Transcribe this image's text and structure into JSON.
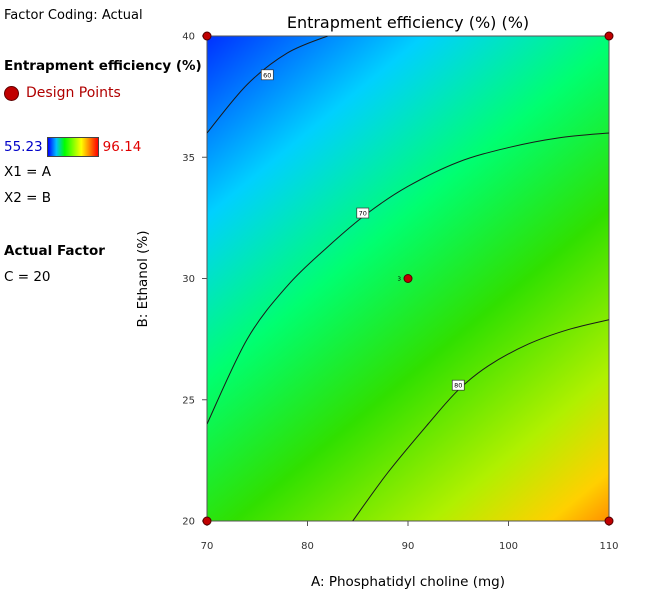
{
  "legend": {
    "factor_coding": "Factor Coding: Actual",
    "response_title": "Entrapment efficiency (%) (%)",
    "design_points_label": "Design Points",
    "scale_min": "55.23",
    "scale_max": "96.14",
    "x1": "X1 = A",
    "x2": "X2 = B",
    "actual_factor_title": "Actual Factor",
    "actual_factor_value": "C = 20"
  },
  "chart_data": {
    "type": "heatmap",
    "title": "Entrapment efficiency (%) (%)",
    "xlabel": "A: Phosphatidyl choline (mg)",
    "ylabel": "B: Ethanol (%)",
    "xlim": [
      70,
      110
    ],
    "ylim": [
      20,
      40
    ],
    "x_ticks": [
      "70",
      "80",
      "90",
      "100",
      "110"
    ],
    "y_ticks": [
      "20",
      "25",
      "30",
      "35",
      "40"
    ],
    "color_range": [
      55.23,
      96.14
    ],
    "color_scale": [
      "#0000ff",
      "#00ffff",
      "#00ff00",
      "#ffff00",
      "#ff8000"
    ],
    "contours": [
      {
        "level": 60,
        "label": "60",
        "label_at": [
          76,
          38.4
        ],
        "points": [
          [
            70,
            36.0
          ],
          [
            74,
            38.0
          ],
          [
            78,
            39.3
          ],
          [
            82,
            40.0
          ]
        ]
      },
      {
        "level": 70,
        "label": "70",
        "label_at": [
          85.5,
          32.7
        ],
        "points": [
          [
            70,
            24.0
          ],
          [
            74,
            27.5
          ],
          [
            78,
            29.7
          ],
          [
            82,
            31.3
          ],
          [
            86,
            32.7
          ],
          [
            90,
            33.8
          ],
          [
            95,
            34.8
          ],
          [
            100,
            35.4
          ],
          [
            105,
            35.8
          ],
          [
            110,
            36.0
          ]
        ]
      },
      {
        "level": 80,
        "label": "80",
        "label_at": [
          95,
          25.6
        ],
        "points": [
          [
            84.5,
            20.0
          ],
          [
            88,
            22.0
          ],
          [
            92,
            24.0
          ],
          [
            95,
            25.4
          ],
          [
            98,
            26.4
          ],
          [
            102,
            27.3
          ],
          [
            106,
            27.9
          ],
          [
            110,
            28.3
          ]
        ]
      }
    ],
    "design_points": [
      {
        "x": 70,
        "y": 40
      },
      {
        "x": 110,
        "y": 40
      },
      {
        "x": 70,
        "y": 20
      },
      {
        "x": 110,
        "y": 20
      },
      {
        "x": 90,
        "y": 30,
        "label": "3"
      }
    ]
  }
}
